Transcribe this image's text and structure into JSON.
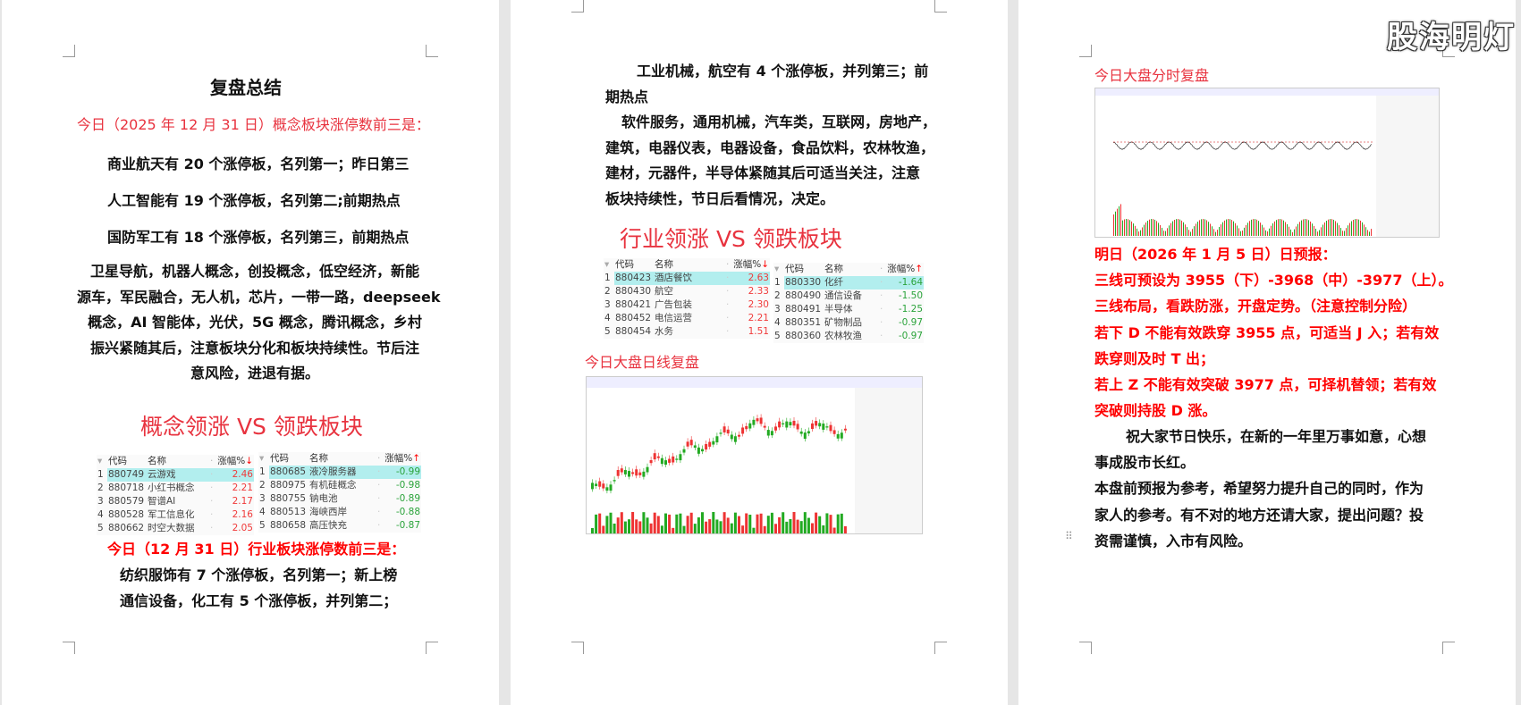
{
  "watermark": "股海明灯",
  "page1": {
    "title": "复盘总结",
    "concept_heading": "今日（2025 年 12 月 31 日）概念板块涨停数前三是：",
    "lines": [
      "商业航天有 20 个涨停板，名列第一；昨日第三",
      "人工智能有 19 个涨停板，名列第二;前期热点",
      "国防军工有 18 个涨停板，名列第三，前期热点"
    ],
    "para": [
      "卫星导航，机器人概念，创投概念，低空经济，新能",
      "源车，军民融合，无人机，芯片，一带一路，deepseek",
      "概念，AI 智能体，光伏，5G 概念，腾讯概念，乡村",
      "振兴紧随其后，注意板块分化和板块持续性。节后注",
      "意风险，进退有据。"
    ],
    "vs_title": "概念领涨 VS 领跌板块",
    "industry_heading": "今日（12 月 31 日）行业板块涨停数前三是：",
    "industry_lines": [
      "纺织服饰有 7 个涨停板，名列第一；新上榜",
      "通信设备，化工有 5 个涨停板，并列第二；"
    ]
  },
  "table_headers": {
    "code": "代码",
    "name": "名称",
    "pct": "涨幅%"
  },
  "concept_up": [
    [
      "1",
      "880749",
      "云游戏",
      "2.46"
    ],
    [
      "2",
      "880718",
      "小红书概念",
      "2.21"
    ],
    [
      "3",
      "880579",
      "智谱AI",
      "2.17"
    ],
    [
      "4",
      "880528",
      "军工信息化",
      "2.16"
    ],
    [
      "5",
      "880662",
      "时空大数据",
      "2.05"
    ]
  ],
  "concept_down": [
    [
      "1",
      "880685",
      "液冷服务器",
      "-0.99"
    ],
    [
      "2",
      "880975",
      "有机硅概念",
      "-0.98"
    ],
    [
      "3",
      "880755",
      "钠电池",
      "-0.89"
    ],
    [
      "4",
      "880513",
      "海峡西岸",
      "-0.88"
    ],
    [
      "5",
      "880658",
      "高压快充",
      "-0.87"
    ]
  ],
  "industry_up": [
    [
      "1",
      "880423",
      "酒店餐饮",
      "2.63"
    ],
    [
      "2",
      "880430",
      "航空",
      "2.33"
    ],
    [
      "3",
      "880421",
      "广告包装",
      "2.30"
    ],
    [
      "4",
      "880452",
      "电信运营",
      "2.21"
    ],
    [
      "5",
      "880454",
      "水务",
      "1.51"
    ]
  ],
  "industry_down": [
    [
      "1",
      "880330",
      "化纤",
      "-1.64"
    ],
    [
      "2",
      "880490",
      "通信设备",
      "-1.50"
    ],
    [
      "3",
      "880491",
      "半导体",
      "-1.25"
    ],
    [
      "4",
      "880351",
      "矿物制品",
      "-0.97"
    ],
    [
      "5",
      "880360",
      "农林牧渔",
      "-0.97"
    ]
  ],
  "page2": {
    "lines": [
      "工业机械，航空有 4 个涨停板，并列第三；前",
      "期热点",
      "软件服务，通用机械，汽车类，互联网，房地产，",
      "建筑，电器仪表，电器设备，食品饮料，农林牧渔，",
      "建材，元器件，半导体紧随其后可适当关注，注意",
      "板块持续性，节日后看情况，决定。"
    ],
    "vs_title": "行业领涨 VS 领跌板块",
    "daily_heading": "今日大盘日线复盘"
  },
  "page3": {
    "intraday_heading": "今日大盘分时复盘",
    "forecast": [
      "明日（2026 年 1 月 5 日）日预报：",
      "三线可预设为 3955（下）-3968（中）-3977（上）。",
      "三线布局，看跌防涨，开盘定势。（注意控制分险）",
      "若下 D 不能有效跌穿 3955 点，可适当 J 入；若有效",
      "跌穿则及时 T 出；",
      "若上 Z 不能有效突破 3977 点，可择机替领；若有效",
      "突破则持股 D 涨。"
    ],
    "closing": [
      "祝大家节日快乐，在新的一年里万事如意，心想",
      "事成股市长红。",
      "本盘前预报为参考，希望努力提升自己的同时，作为",
      "家人的参考。有不对的地方还请大家，提出问题？投",
      "资需谨慎，入市有风险。"
    ]
  },
  "colors": {
    "red": "#ff0000",
    "pink_red": "#e8333f",
    "up": "#f03a3a",
    "down": "#2aa33a",
    "highlight": "#b2eeee"
  }
}
